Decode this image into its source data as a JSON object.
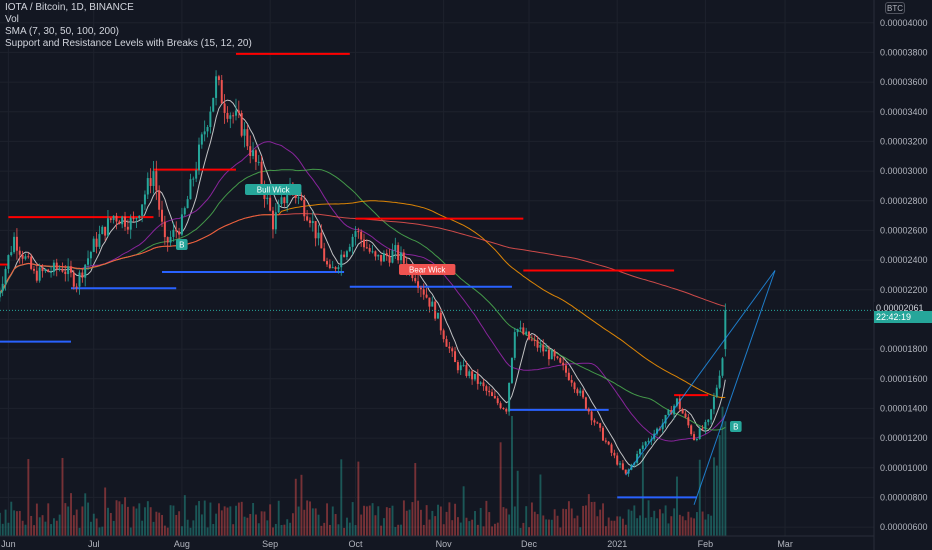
{
  "legend": {
    "symbol": "IOTA / Bitcoin, 1D, BINANCE",
    "volume": "Vol",
    "sma": "SMA (7, 30, 50, 100, 200)",
    "indicator": "Support and Resistance Levels with Breaks (15, 12, 20)"
  },
  "currency": "BTC",
  "last_price": "0.00002061",
  "countdown": "22:42:19",
  "price_prefix": "0",
  "labels": {
    "bull_wick": "Bull Wick",
    "bear_wick": "Bear Wick",
    "b1": "B",
    "b2": "B"
  },
  "colors": {
    "background": "#131722",
    "up": "#26a69a",
    "down": "#ef5350",
    "resistance": "#ff0000",
    "support": "#2962ff",
    "sma7": "#e0e0e0",
    "sma30": "#9c27b0",
    "sma50": "#4caf50",
    "sma100": "#ff9800",
    "sma200": "#ef5350"
  },
  "chart_data": {
    "type": "candlestick",
    "y_axis_ticks": [
      "0.00000600",
      "0.00000800",
      "0.00001000",
      "0.00001200",
      "0.00001400",
      "0.00001600",
      "0.00001800",
      "0.00002000",
      "0.00002200",
      "0.00002400",
      "0.00002600",
      "0.00002800",
      "0.00003000",
      "0.00003200",
      "0.00003400",
      "0.00003600",
      "0.00003800",
      "0.00004000"
    ],
    "ylim": [
      5.4e-06,
      4.14e-05
    ],
    "x_axis_ticks": [
      "Jun",
      "Jul",
      "Aug",
      "Sep",
      "Oct",
      "Nov",
      "Dec",
      "2021",
      "Feb",
      "Mar"
    ],
    "grid": true,
    "price_path": [
      [
        "May 28",
        2.15e-05
      ],
      [
        "Jun 3",
        2.55e-05
      ],
      [
        "Jun 10",
        2.3e-05
      ],
      [
        "Jun 20",
        2.35e-05
      ],
      [
        "Jun 25",
        2.25e-05
      ],
      [
        "Jul 1",
        2.5e-05
      ],
      [
        "Jul 8",
        2.7e-05
      ],
      [
        "Jul 15",
        2.65e-05
      ],
      [
        "Jul 22",
        3e-05
      ],
      [
        "Jul 26",
        2.5e-05
      ],
      [
        "Aug 1",
        2.65e-05
      ],
      [
        "Aug 8",
        3.2e-05
      ],
      [
        "Aug 13",
        3.6e-05
      ],
      [
        "Aug 16",
        3.45e-05
      ],
      [
        "Aug 22",
        3.3e-05
      ],
      [
        "Aug 28",
        3e-05
      ],
      [
        "Sep 2",
        2.65e-05
      ],
      [
        "Sep 8",
        2.9e-05
      ],
      [
        "Sep 15",
        2.7e-05
      ],
      [
        "Sep 22",
        2.3e-05
      ],
      [
        "Oct 1",
        2.6e-05
      ],
      [
        "Oct 8",
        2.4e-05
      ],
      [
        "Oct 15",
        2.45e-05
      ],
      [
        "Oct 22",
        2.3e-05
      ],
      [
        "Oct 29",
        2.05e-05
      ],
      [
        "Nov 5",
        1.7e-05
      ],
      [
        "Nov 12",
        1.6e-05
      ],
      [
        "Nov 19",
        1.45e-05
      ],
      [
        "Nov 23",
        1.4e-05
      ],
      [
        "Nov 26",
        1.95e-05
      ],
      [
        "Dec 2",
        1.85e-05
      ],
      [
        "Dec 9",
        1.75e-05
      ],
      [
        "Dec 16",
        1.6e-05
      ],
      [
        "Dec 23",
        1.35e-05
      ],
      [
        "Dec 30",
        1.1e-05
      ],
      [
        "Jan 4",
        9.5e-06
      ],
      [
        "Jan 10",
        1.15e-05
      ],
      [
        "Jan 17",
        1.3e-05
      ],
      [
        "Jan 22",
        1.45e-05
      ],
      [
        "Jan 28",
        1.2e-05
      ],
      [
        "Feb 2",
        1.3e-05
      ],
      [
        "Feb 5",
        1.55e-05
      ],
      [
        "Feb 7",
        1.75e-05
      ],
      [
        "Feb 8",
        2.06e-05
      ]
    ],
    "resistance_levels": [
      {
        "from": "May 28",
        "to": "Jun 1",
        "price": 2.37e-05
      },
      {
        "from": "Jun 1",
        "to": "Jul 22",
        "price": 2.69e-05
      },
      {
        "from": "Jul 22",
        "to": "Aug 20",
        "price": 3.01e-05
      },
      {
        "from": "Aug 20",
        "to": "Sep 29",
        "price": 3.79e-05
      },
      {
        "from": "Oct 1",
        "to": "Nov 29",
        "price": 2.68e-05
      },
      {
        "from": "Nov 29",
        "to": "Jan 21",
        "price": 2.33e-05
      },
      {
        "from": "Jan 21",
        "to": "Feb 2",
        "price": 1.49e-05
      }
    ],
    "support_levels": [
      {
        "from": "May 28",
        "to": "Jun 23",
        "price": 1.85e-05
      },
      {
        "from": "Jun 23",
        "to": "Jul 30",
        "price": 2.21e-05
      },
      {
        "from": "Jul 25",
        "to": "Sep 27",
        "price": 2.32e-05
      },
      {
        "from": "Sep 29",
        "to": "Nov 25",
        "price": 2.22e-05
      },
      {
        "from": "Nov 24",
        "to": "Dec 29",
        "price": 1.39e-05
      },
      {
        "from": "Jan 1",
        "to": "Jan 29",
        "price": 8e-06
      }
    ],
    "last_price": 2.061e-05
  }
}
